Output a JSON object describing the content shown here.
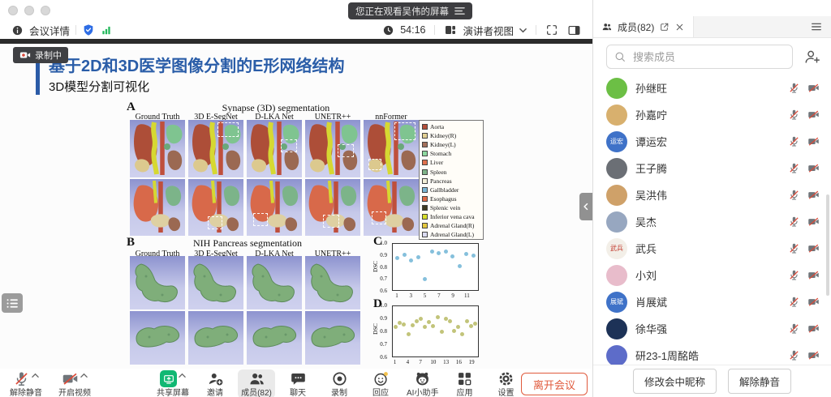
{
  "window": {
    "banner": "您正在观看吴伟的屏幕"
  },
  "topbar": {
    "meeting_details": "会议详情",
    "timer": "54:16",
    "view_mode": "演讲者视图"
  },
  "slide": {
    "recording_badge": "录制中",
    "title": "基于2D和3D医学图像分割的E形网络结构",
    "subtitle": "3D模型分割可视化",
    "panel_a": {
      "label": "A",
      "title": "Synapse (3D) segmentation",
      "columns": [
        "Ground Truth",
        "3D E-SegNet",
        "D-LKA Net",
        "UNETR++",
        "nnFormer"
      ],
      "legend": [
        {
          "label": "Aorta",
          "color": "#b5503a"
        },
        {
          "label": "Kidney(R)",
          "color": "#e3d093"
        },
        {
          "label": "Kidney(L)",
          "color": "#a4705a"
        },
        {
          "label": "Stomach",
          "color": "#8fd9a0"
        },
        {
          "label": "Liver",
          "color": "#e0714e"
        },
        {
          "label": "Spleen",
          "color": "#7fb389"
        },
        {
          "label": "Pancreas",
          "color": "#f2eed6"
        },
        {
          "label": "Gallbladder",
          "color": "#7ab6d4"
        },
        {
          "label": "Esophagus",
          "color": "#df6a45"
        },
        {
          "label": "Splenic vein",
          "color": "#3f3a20"
        },
        {
          "label": "Inferior vena cava",
          "color": "#d6de2a"
        },
        {
          "label": "Adrenal Gland(R)",
          "color": "#e5c83e"
        },
        {
          "label": "Adrenal Gland(L)",
          "color": "#dcdcf2"
        }
      ]
    },
    "panel_b": {
      "label": "B",
      "title": "NIH Pancreas segmentation",
      "columns": [
        "Ground Truth",
        "3D E-SegNet",
        "D-LKA Net",
        "UNETR++"
      ]
    },
    "chart_data": [
      {
        "id": "C",
        "type": "scatter",
        "ylabel": "DSC",
        "ylim": [
          0.6,
          1.0
        ],
        "yticks": [
          1.0,
          0.9,
          0.8,
          0.7,
          0.6
        ],
        "xticks": [
          1,
          3,
          5,
          7,
          9,
          11
        ],
        "color": "#85c0dc",
        "values": [
          0.88,
          0.905,
          0.855,
          0.885,
          0.695,
          0.935,
          0.92,
          0.935,
          0.89,
          0.81,
          0.91,
          0.895
        ]
      },
      {
        "id": "D",
        "type": "scatter",
        "ylabel": "DSC",
        "ylim": [
          0.6,
          1.0
        ],
        "yticks": [
          1.0,
          0.9,
          0.8,
          0.7,
          0.6
        ],
        "xticks": [
          1,
          4,
          7,
          10,
          13,
          16,
          19
        ],
        "color": "#c2c47a",
        "values": [
          0.835,
          0.87,
          0.855,
          0.775,
          0.85,
          0.88,
          0.9,
          0.835,
          0.875,
          0.845,
          0.91,
          0.8,
          0.9,
          0.88,
          0.805,
          0.835,
          0.78,
          0.88,
          0.845,
          0.86
        ]
      }
    ]
  },
  "members_panel": {
    "tab_label": "成员(82)",
    "search_placeholder": "搜索成员",
    "members": [
      {
        "name": "孙继旺",
        "avatar": {
          "type": "color",
          "bg": "#6cbf45"
        }
      },
      {
        "name": "孙嘉咛",
        "avatar": {
          "type": "color",
          "bg": "#d8b06e"
        }
      },
      {
        "name": "谭运宏",
        "avatar": {
          "type": "text",
          "bg": "#3f72c8",
          "text": "运宏"
        }
      },
      {
        "name": "王子腾",
        "avatar": {
          "type": "color",
          "bg": "#6b6f75"
        }
      },
      {
        "name": "吴洪伟",
        "avatar": {
          "type": "color",
          "bg": "#cfa169"
        }
      },
      {
        "name": "吴杰",
        "avatar": {
          "type": "color",
          "bg": "#97a7c0"
        }
      },
      {
        "name": "武兵",
        "avatar": {
          "type": "text",
          "bg": "#f3efe8",
          "text": "武兵",
          "fg": "#c23b2e"
        }
      },
      {
        "name": "小刘",
        "avatar": {
          "type": "color",
          "bg": "#e8bccb"
        }
      },
      {
        "name": "肖展斌",
        "avatar": {
          "type": "text",
          "bg": "#3f72c8",
          "text": "展斌"
        }
      },
      {
        "name": "徐华强",
        "avatar": {
          "type": "color",
          "bg": "#1d3257"
        }
      },
      {
        "name": "研23-1周酩皓",
        "avatar": {
          "type": "color",
          "bg": "#5d6cc9"
        }
      }
    ],
    "footer_buttons": [
      "修改会中昵称",
      "解除静音"
    ]
  },
  "toolbar": {
    "left_items": [
      {
        "label": "解除静音",
        "icon": "mic-off-icon",
        "name": "unmute-button",
        "caret": true
      },
      {
        "label": "开启视频",
        "icon": "camera-off-icon",
        "name": "start-video-button",
        "caret": true
      }
    ],
    "center_items": [
      {
        "label": "共享屏幕",
        "icon": "share-screen-icon",
        "name": "share-screen-button",
        "caret": true
      },
      {
        "label": "邀请",
        "icon": "invite-icon",
        "name": "invite-button"
      },
      {
        "label": "成员(82)",
        "icon": "members-icon",
        "name": "members-button",
        "active": true
      },
      {
        "label": "聊天",
        "icon": "chat-icon",
        "name": "chat-button"
      },
      {
        "label": "录制",
        "icon": "record-icon",
        "name": "record-button"
      },
      {
        "label": "回应",
        "icon": "reaction-icon",
        "name": "reactions-button"
      },
      {
        "label": "AI小助手",
        "icon": "ai-icon",
        "name": "ai-assistant-button"
      },
      {
        "label": "应用",
        "icon": "apps-icon",
        "name": "apps-button"
      },
      {
        "label": "设置",
        "icon": "settings-icon",
        "name": "settings-button"
      }
    ],
    "leave_button": "离开会议"
  }
}
